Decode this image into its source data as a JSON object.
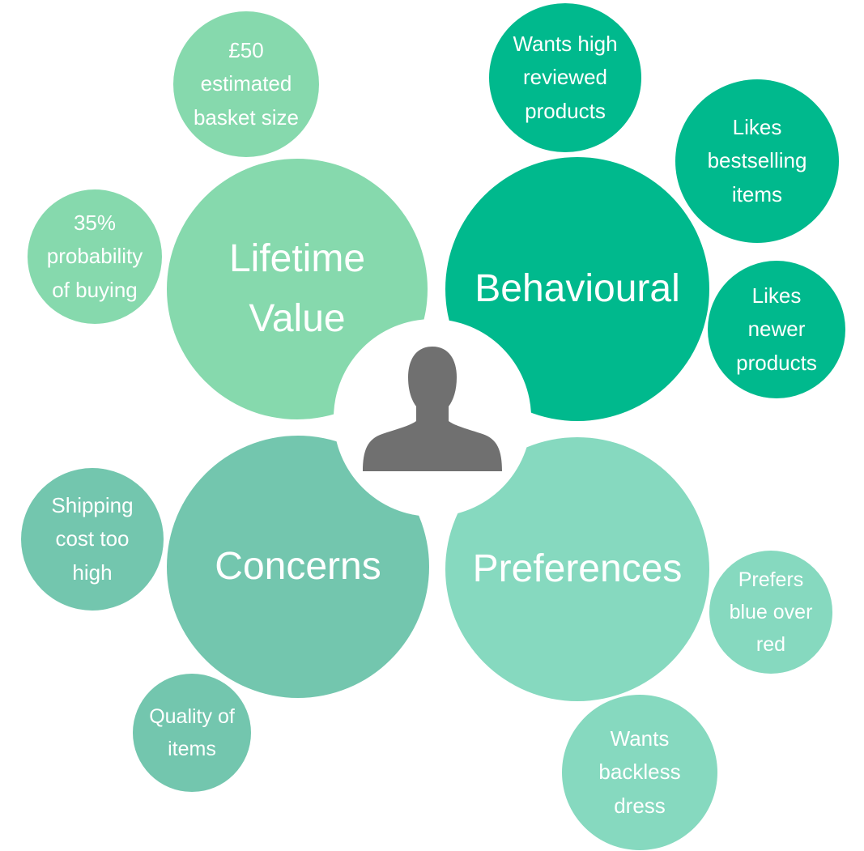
{
  "colors": {
    "lifetime_value": "#86D9AD",
    "behavioural": "#00B98D",
    "concerns": "#73C6AE",
    "preferences": "#86D9BF",
    "center": "#FFFFFF",
    "person": "#707070",
    "text": "#FFFFFF"
  },
  "icons": {
    "center": "person-silhouette-icon"
  },
  "categories": {
    "lifetime_value": "Lifetime\nValue",
    "behavioural": "Behavioural",
    "concerns": "Concerns",
    "preferences": "Preferences"
  },
  "details": {
    "basket": "£50\nestimated\nbasket size",
    "probability": "35%\nprobability\nof buying",
    "reviewed": "Wants high\nreviewed\nproducts",
    "bestselling": "Likes\nbestselling\nitems",
    "newer": "Likes\nnewer\nproducts",
    "shipping": "Shipping\ncost too\nhigh",
    "quality": "Quality of\nitems",
    "blue": "Prefers\nblue over\nred",
    "backless": "Wants\nbackless\ndress"
  }
}
